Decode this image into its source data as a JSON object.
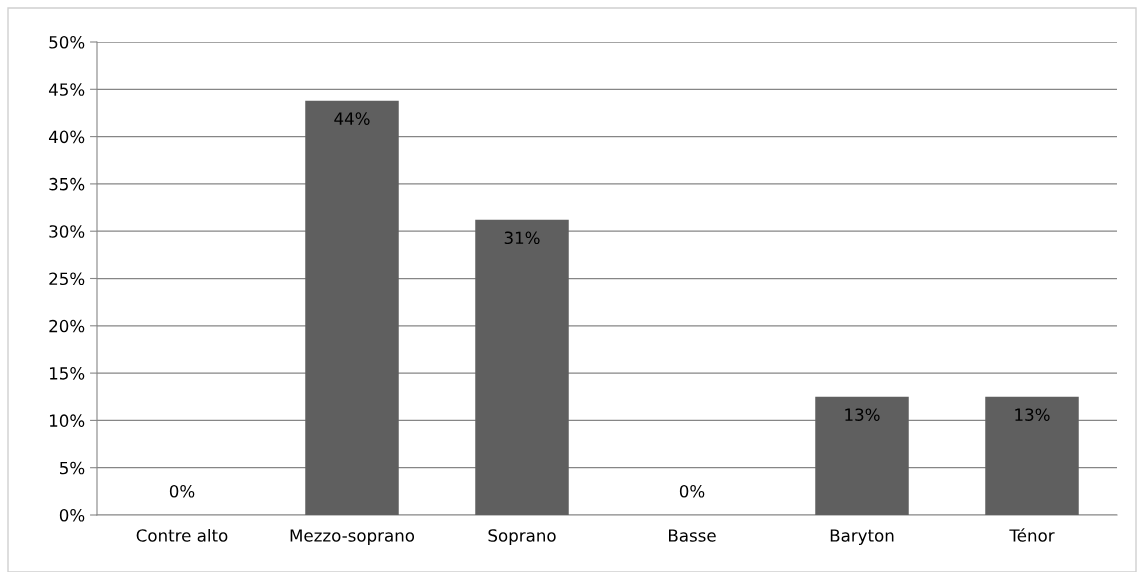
{
  "chart_data": {
    "type": "bar",
    "categories": [
      "Contre alto",
      "Mezzo-soprano",
      "Soprano",
      "Basse",
      "Baryton",
      "Ténor"
    ],
    "values": [
      0,
      43.8,
      31.2,
      0,
      12.5,
      12.5
    ],
    "value_labels": [
      "0%",
      "44%",
      "31%",
      "0%",
      "13%",
      "13%"
    ],
    "color": "#5f5f5f",
    "ylim": [
      0,
      50
    ],
    "yticks": [
      {
        "value": 0,
        "label": "0%"
      },
      {
        "value": 5,
        "label": "5%"
      },
      {
        "value": 10,
        "label": "10%"
      },
      {
        "value": 15,
        "label": "15%"
      },
      {
        "value": 20,
        "label": "20%"
      },
      {
        "value": 25,
        "label": "25%"
      },
      {
        "value": 30,
        "label": "30%"
      },
      {
        "value": 35,
        "label": "35%"
      },
      {
        "value": 40,
        "label": "40%"
      },
      {
        "value": 45,
        "label": "45%"
      },
      {
        "value": 50,
        "label": "50%"
      }
    ],
    "grid": "y",
    "legend": false
  }
}
